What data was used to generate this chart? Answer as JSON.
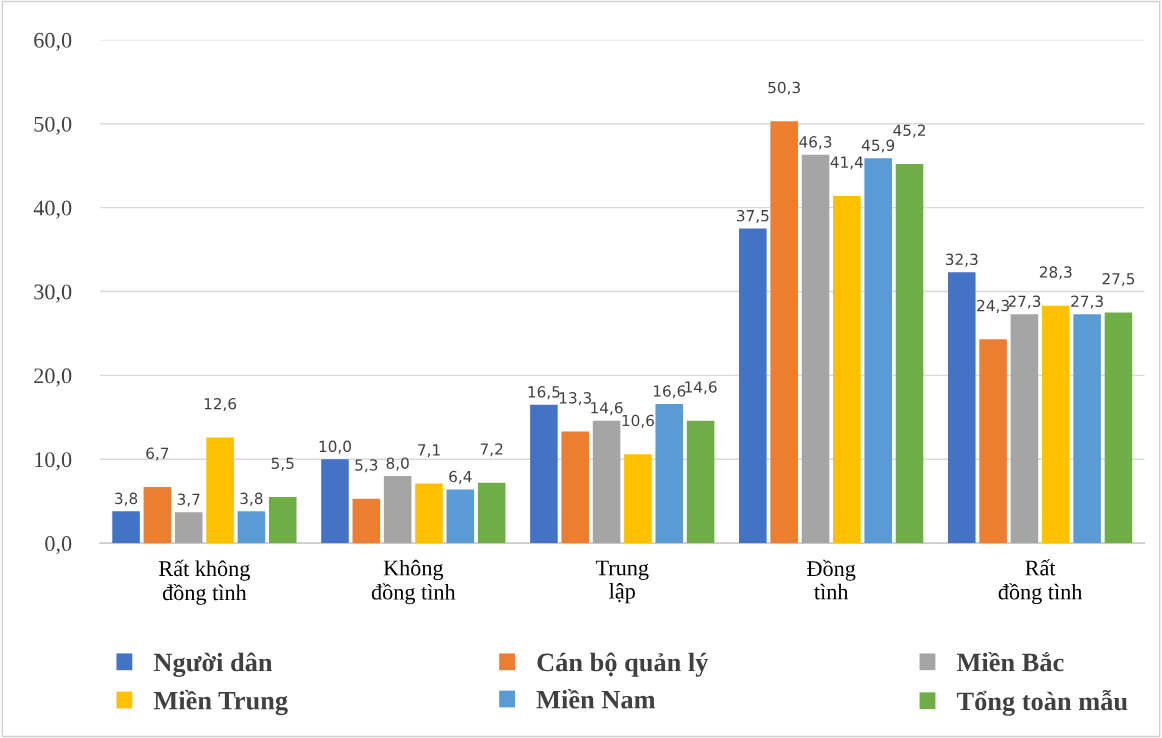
{
  "chart_data": {
    "type": "bar",
    "categories": [
      "Rất không\nđồng tình",
      "Không\nđồng tình",
      "Trung\nlập",
      "Đồng\ntình",
      "Rất\nđồng tình"
    ],
    "series": [
      {
        "name": "Người dân",
        "color": "#4472c4",
        "values": [
          3.8,
          10.0,
          16.5,
          37.5,
          32.3
        ],
        "value_labels": [
          "3,8",
          "10,0",
          "16,5",
          "37,5",
          "32,3"
        ]
      },
      {
        "name": "Cán bộ quản lý",
        "color": "#ed7d31",
        "values": [
          6.7,
          5.3,
          13.3,
          50.3,
          24.3
        ],
        "value_labels": [
          "6,7",
          "5,3",
          "13,3",
          "50,3",
          "24,3"
        ]
      },
      {
        "name": "Miền Bắc",
        "color": "#a5a5a5",
        "values": [
          3.7,
          8.0,
          14.6,
          46.3,
          27.3
        ],
        "value_labels": [
          "3,7",
          "8,0",
          "14,6",
          "46,3",
          "27,3"
        ]
      },
      {
        "name": "Miền Trung",
        "color": "#ffc000",
        "values": [
          12.6,
          7.1,
          10.6,
          41.4,
          28.3
        ],
        "value_labels": [
          "12,6",
          "7,1",
          "10,6",
          "41,4",
          "28,3"
        ]
      },
      {
        "name": "Miền Nam",
        "color": "#5b9bd5",
        "values": [
          3.8,
          6.4,
          16.6,
          45.9,
          27.3
        ],
        "value_labels": [
          "3,8",
          "6,4",
          "16,6",
          "45,9",
          "27,3"
        ]
      },
      {
        "name": "Tổng toàn mẫu",
        "color": "#70ad47",
        "values": [
          5.5,
          7.2,
          14.6,
          45.2,
          27.5
        ],
        "value_labels": [
          "5,5",
          "7,2",
          "14,6",
          "45,2",
          "27,5"
        ]
      }
    ],
    "ylim": [
      0,
      60
    ],
    "yticks": [
      {
        "value": 0,
        "label": "0,0"
      },
      {
        "value": 10,
        "label": "10,0"
      },
      {
        "value": 20,
        "label": "20,0"
      },
      {
        "value": 30,
        "label": "30,0"
      },
      {
        "value": 40,
        "label": "40,0"
      },
      {
        "value": 50,
        "label": "50,0"
      },
      {
        "value": 60,
        "label": "60,0"
      }
    ],
    "grid": "y",
    "legend": "bottom"
  }
}
